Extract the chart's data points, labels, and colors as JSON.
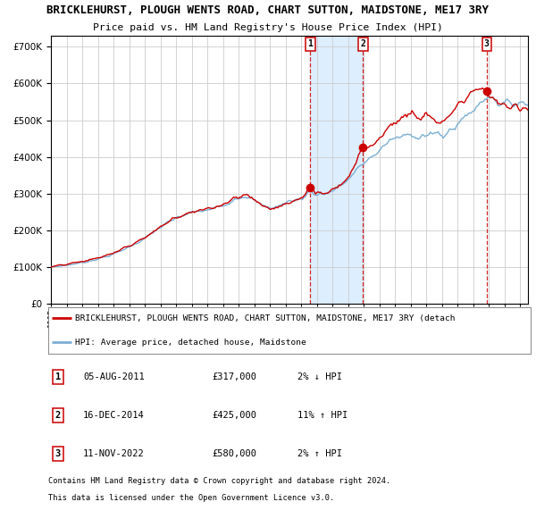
{
  "title1": "BRICKLEHURST, PLOUGH WENTS ROAD, CHART SUTTON, MAIDSTONE, ME17 3RY",
  "title2": "Price paid vs. HM Land Registry's House Price Index (HPI)",
  "legend_red": "BRICKLEHURST, PLOUGH WENTS ROAD, CHART SUTTON, MAIDSTONE, ME17 3RY (detach",
  "legend_blue": "HPI: Average price, detached house, Maidstone",
  "sale_dates": [
    "05-AUG-2011",
    "16-DEC-2014",
    "11-NOV-2022"
  ],
  "sale_prices": [
    317000,
    425000,
    580000
  ],
  "sale_hpi_pct": [
    "2% ↓ HPI",
    "11% ↑ HPI",
    "2% ↑ HPI"
  ],
  "sale_years": [
    2011.59,
    2014.96,
    2022.86
  ],
  "footer1": "Contains HM Land Registry data © Crown copyright and database right 2024.",
  "footer2": "This data is licensed under the Open Government Licence v3.0.",
  "ylim": [
    0,
    730000
  ],
  "xlim_start": 1995.0,
  "xlim_end": 2025.5,
  "red_color": "#cc0000",
  "blue_color": "#7bafd4",
  "shade_color": "#ddeeff",
  "grid_color": "#cccccc",
  "bg_color": "#ffffff",
  "title_fontsize": 9.0,
  "subtitle_fontsize": 8.5
}
